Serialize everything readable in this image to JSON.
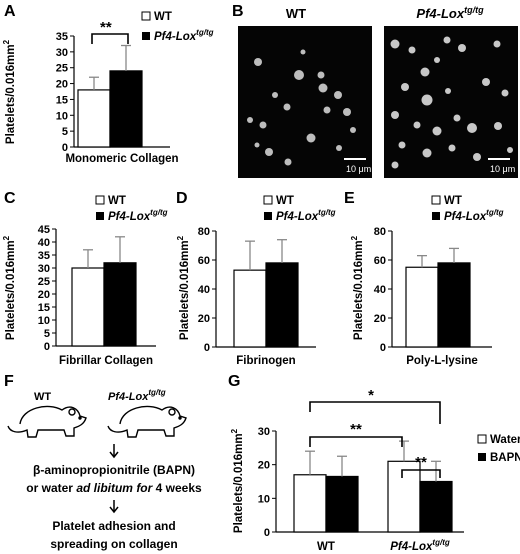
{
  "panels": {
    "A": "A",
    "B": "B",
    "C": "C",
    "D": "D",
    "E": "E",
    "F": "F",
    "G": "G"
  },
  "legend": {
    "wt": "WT",
    "tg_base": "Pf4-Lox",
    "tg_sup": "tg/tg"
  },
  "axis_title": {
    "base": "Platelets/0.016mm",
    "sup": "2"
  },
  "images": {
    "wt_label": "WT",
    "tg_label_base": "Pf4-Lox",
    "tg_label_sup": "tg/tg",
    "scale_bar": "10 μm"
  },
  "sig": {
    "A": "**",
    "G_outer": "*",
    "G_wt": "**",
    "G_tg": "**"
  },
  "flow": {
    "mouse_wt": "WT",
    "mouse_tg_base": "Pf4-Lox",
    "mouse_tg_sup": "tg/tg",
    "treat_line1": "β-aminopropionitrile (BAPN)",
    "treat_line2_a": "or water ",
    "treat_line2_b": "ad libitum for",
    "treat_line2_c": " 4 weeks",
    "outcome_line1": "Platelet adhesion and",
    "outcome_line2": "spreading on collagen"
  },
  "colors": {
    "wt": "#ffffff",
    "tg": "#000000",
    "bapn": "#000000",
    "water": "#ffffff"
  },
  "chart_data": [
    {
      "id": "A",
      "type": "bar",
      "xlabel": "Monomeric Collagen",
      "ylim": [
        0,
        35
      ],
      "yticks": [
        0,
        5,
        10,
        15,
        20,
        25,
        30,
        35
      ],
      "series": [
        {
          "name": "WT",
          "values": [
            18
          ],
          "errors": [
            4
          ]
        },
        {
          "name": "Pf4-Loxtg/tg",
          "values": [
            24
          ],
          "errors": [
            8
          ]
        }
      ]
    },
    {
      "id": "C",
      "type": "bar",
      "xlabel": "Fibrillar Collagen",
      "ylim": [
        0,
        45
      ],
      "yticks": [
        0,
        5,
        10,
        15,
        20,
        25,
        30,
        35,
        40,
        45
      ],
      "series": [
        {
          "name": "WT",
          "values": [
            30
          ],
          "errors": [
            7
          ]
        },
        {
          "name": "Pf4-Loxtg/tg",
          "values": [
            32
          ],
          "errors": [
            10
          ]
        }
      ]
    },
    {
      "id": "D",
      "type": "bar",
      "xlabel": "Fibrinogen",
      "ylim": [
        0,
        80
      ],
      "yticks": [
        0,
        20,
        40,
        60,
        80
      ],
      "series": [
        {
          "name": "WT",
          "values": [
            53
          ],
          "errors": [
            20
          ]
        },
        {
          "name": "Pf4-Loxtg/tg",
          "values": [
            58
          ],
          "errors": [
            16
          ]
        }
      ]
    },
    {
      "id": "E",
      "type": "bar",
      "xlabel": "Poly-L-lysine",
      "ylim": [
        0,
        80
      ],
      "yticks": [
        0,
        20,
        40,
        60,
        80
      ],
      "series": [
        {
          "name": "WT",
          "values": [
            55
          ],
          "errors": [
            8
          ]
        },
        {
          "name": "Pf4-Loxtg/tg",
          "values": [
            58
          ],
          "errors": [
            10
          ]
        }
      ]
    },
    {
      "id": "G",
      "type": "bar",
      "categories": [
        "WT",
        "Pf4-Loxtg/tg"
      ],
      "ylim": [
        0,
        30
      ],
      "yticks": [
        0,
        10,
        20,
        30
      ],
      "series": [
        {
          "name": "Water",
          "values": [
            17,
            21
          ],
          "errors": [
            7,
            6
          ]
        },
        {
          "name": "BAPN",
          "values": [
            16.5,
            15
          ],
          "errors": [
            6,
            6
          ]
        }
      ]
    }
  ]
}
